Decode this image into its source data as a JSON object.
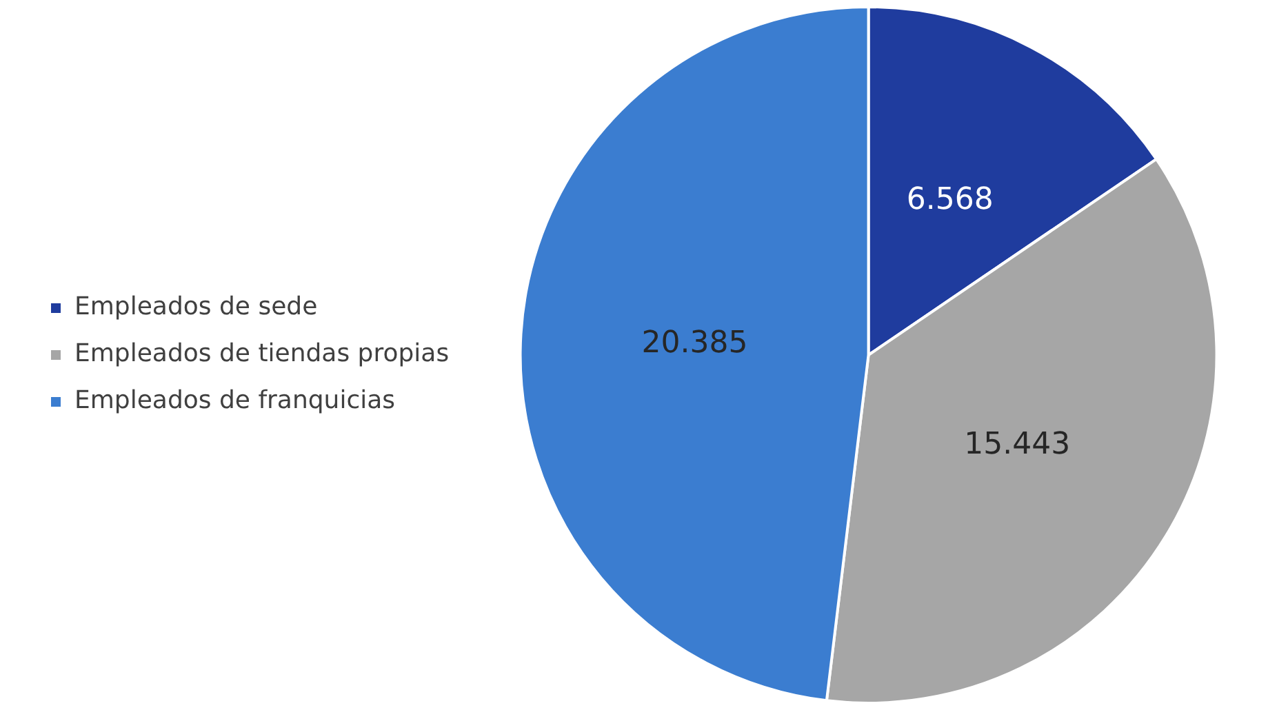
{
  "chart_data": {
    "type": "pie",
    "categories": [
      "Empleados de sede",
      "Empleados de tiendas propias",
      "Empleados de franquicias"
    ],
    "values": [
      6568,
      15443,
      20385
    ],
    "value_labels": [
      "6.568",
      "15.443",
      "20.385"
    ],
    "colors": [
      "#1f3c9e",
      "#a6a6a6",
      "#3b7dd0"
    ],
    "legend": "left"
  }
}
